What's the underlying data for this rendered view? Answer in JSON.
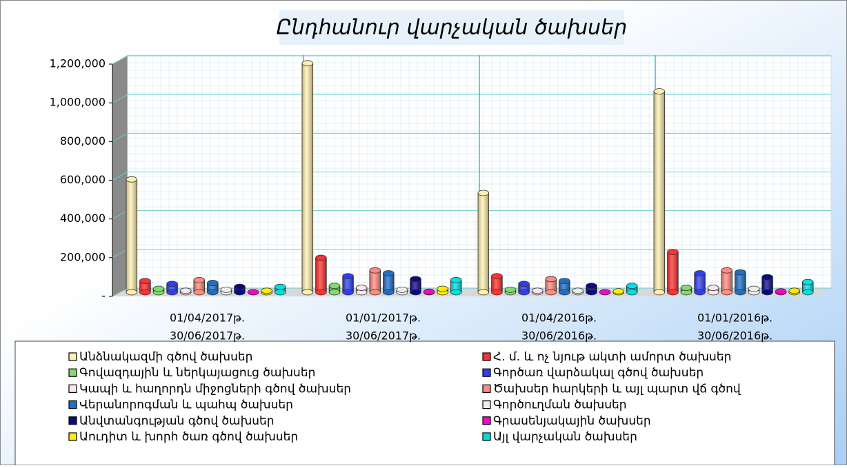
{
  "chart_data": {
    "type": "bar3d",
    "title": "Ընդհանուր վարչական ծախսեր",
    "categories": [
      [
        "01/04/2017թ.",
        "30/06/2017թ."
      ],
      [
        "01/01/2017թ.",
        "30/06/2017թ."
      ],
      [
        "01/04/2016թ.",
        "30/06/2016թ."
      ],
      [
        "01/01/2016թ.",
        "30/06/2016թ."
      ]
    ],
    "ylim": [
      0,
      1200000
    ],
    "yticks": [
      {
        "value": 0,
        "label": "-"
      },
      {
        "value": 200000,
        "label": "200,000"
      },
      {
        "value": 400000,
        "label": "400,000"
      },
      {
        "value": 600000,
        "label": "600,000"
      },
      {
        "value": 800000,
        "label": "800,000"
      },
      {
        "value": 1000000,
        "label": "1,000,000"
      },
      {
        "value": 1200000,
        "label": "1,200,000"
      }
    ],
    "grid": true,
    "series": [
      {
        "name": "Անձնակազմի գծով ծախսեր",
        "color": "#fff0b0",
        "values": [
          590000,
          1190000,
          520000,
          1045000
        ]
      },
      {
        "name": "Հ. մ. և ոչ նյութ ակտի ամորտ ծախսեր",
        "color": "#ff3030",
        "values": [
          65000,
          185000,
          90000,
          215000
        ]
      },
      {
        "name": "Գովազդային և ներկայացուց ծախսեր",
        "color": "#80dc6c",
        "values": [
          25000,
          40000,
          20000,
          30000
        ]
      },
      {
        "name": "Գործառ վարձակալ գծով ծախսեր",
        "color": "#2f3ff0",
        "values": [
          50000,
          90000,
          50000,
          105000
        ]
      },
      {
        "name": "Կապի և հաղորդն միջոցների գծով ծախսեր",
        "color": "#ffe4f0",
        "values": [
          15000,
          30000,
          15000,
          30000
        ]
      },
      {
        "name": "Ծախսեր հարկերի և այլ պարտ վճ գծով",
        "color": "#ff8a80",
        "values": [
          70000,
          120000,
          75000,
          120000
        ]
      },
      {
        "name": "Վերանորոգման և պահպ ծախսեր",
        "color": "#1f6fc6",
        "values": [
          55000,
          105000,
          65000,
          110000
        ]
      },
      {
        "name": "Գործուղման ծախսեր",
        "color": "#eeeeee",
        "values": [
          20000,
          20000,
          15000,
          25000
        ]
      },
      {
        "name": "Անվտանգության գծով ծախսեր",
        "color": "#0a0a80",
        "values": [
          35000,
          75000,
          40000,
          85000
        ]
      },
      {
        "name": "Գրասենյակային ծախսեր",
        "color": "#ff00cc",
        "values": [
          8000,
          10000,
          8000,
          12000
        ]
      },
      {
        "name": "Աուդիտ և խորհ ծառ գծով ծախսեր",
        "color": "#ffee00",
        "values": [
          15000,
          25000,
          12000,
          15000
        ]
      },
      {
        "name": "Այլ վարչական ծախսեր",
        "color": "#00e0e0",
        "values": [
          35000,
          70000,
          40000,
          60000
        ]
      }
    ]
  }
}
